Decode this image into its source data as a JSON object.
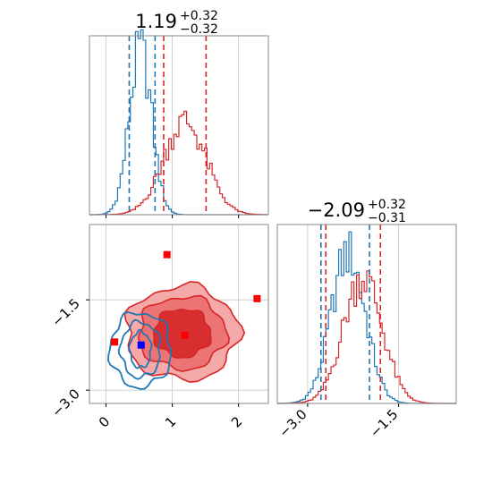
{
  "colors": {
    "blue": "#1f77b4",
    "red": "#d62728",
    "grid": "#c8c8c8",
    "marker_blue": "#0000ff",
    "marker_red": "#ff0000"
  },
  "chart_data": {
    "type": "corner",
    "panels": [
      {
        "id": "hist-param-1",
        "type": "histogram",
        "title": {
          "value": "1.19",
          "upper": "+0.32",
          "lower": "−0.32"
        },
        "xlim": [
          -0.25,
          2.45
        ],
        "series": [
          {
            "name": "",
            "color": "blue",
            "center": 0.52,
            "sigma": 0.17,
            "peak": 0.92,
            "quantiles": [
              0.35,
              0.74
            ]
          },
          {
            "name": "",
            "color": "red",
            "center": 1.19,
            "sigma": 0.32,
            "peak": 0.52,
            "quantiles": [
              0.87,
              1.51
            ]
          }
        ]
      },
      {
        "id": "hist-param-2",
        "type": "histogram",
        "title": {
          "value": "−2.09",
          "upper": "+0.32",
          "lower": "−0.31"
        },
        "xlim": [
          -3.5,
          -0.55
        ],
        "xticks": [
          {
            "value": -3.0,
            "label": "−3.0"
          },
          {
            "value": -1.5,
            "label": "−1.5"
          }
        ],
        "series": [
          {
            "name": "",
            "color": "blue",
            "center": -2.33,
            "sigma": 0.28,
            "peak": 0.84,
            "quantiles": [
              -2.78,
              -1.98
            ]
          },
          {
            "name": "",
            "color": "red",
            "center": -2.09,
            "sigma": 0.32,
            "peak": 0.71,
            "quantiles": [
              -2.7,
              -1.8
            ]
          }
        ]
      },
      {
        "id": "scatter-2d",
        "type": "contour",
        "xlim": [
          -0.25,
          2.45
        ],
        "ylim": [
          -3.22,
          -0.25
        ],
        "xticks": [
          {
            "value": 0,
            "label": "0"
          },
          {
            "value": 1,
            "label": "1"
          },
          {
            "value": 2,
            "label": "2"
          }
        ],
        "yticks": [
          {
            "value": -1.5,
            "label": "−1.5"
          },
          {
            "value": -3.0,
            "label": "−3.0"
          }
        ],
        "red_contours": [
          {
            "cx": 1.15,
            "cy": -2.05,
            "rx": 0.85,
            "ry": 0.78
          },
          {
            "cx": 1.15,
            "cy": -2.05,
            "rx": 0.66,
            "ry": 0.6
          },
          {
            "cx": 1.15,
            "cy": -2.05,
            "rx": 0.43,
            "ry": 0.4
          }
        ],
        "blue_contours": [
          {
            "cx": 0.52,
            "cy": -2.33,
            "rx": 0.46,
            "ry": 0.62
          },
          {
            "cx": 0.52,
            "cy": -2.33,
            "rx": 0.3,
            "ry": 0.46
          },
          {
            "cx": 0.52,
            "cy": -2.33,
            "rx": 0.16,
            "ry": 0.3
          }
        ],
        "markers": [
          {
            "color": "marker_red",
            "x": 0.92,
            "y": -0.75
          },
          {
            "color": "marker_red",
            "x": 2.28,
            "y": -1.48
          },
          {
            "color": "marker_red",
            "x": 1.19,
            "y": -2.09
          },
          {
            "color": "marker_red",
            "x": 0.13,
            "y": -2.2
          },
          {
            "color": "marker_blue",
            "x": 0.53,
            "y": -2.25
          }
        ]
      }
    ]
  }
}
